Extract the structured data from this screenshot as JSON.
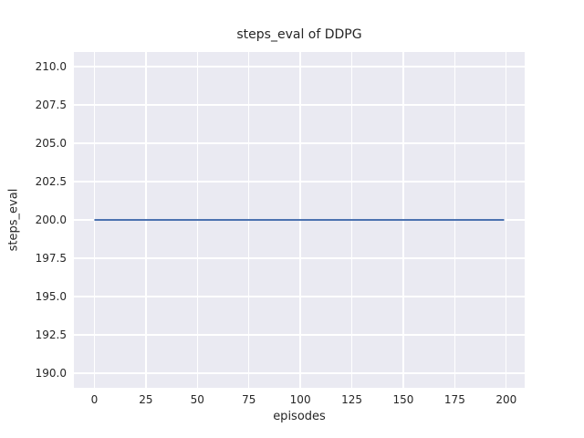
{
  "chart_data": {
    "type": "line",
    "title": "steps_eval of DDPG",
    "xlabel": "episodes",
    "ylabel": "steps_eval",
    "xlim": [
      -9.95,
      208.95
    ],
    "ylim": [
      189.05,
      210.95
    ],
    "xticks": {
      "values": [
        0,
        25,
        50,
        75,
        100,
        125,
        150,
        175,
        200
      ],
      "labels": [
        "0",
        "25",
        "50",
        "75",
        "100",
        "125",
        "150",
        "175",
        "200"
      ]
    },
    "yticks": {
      "values": [
        190,
        192.5,
        195,
        197.5,
        200,
        202.5,
        205,
        207.5,
        210
      ],
      "labels": [
        "190.0",
        "192.5",
        "195.0",
        "197.5",
        "200.0",
        "202.5",
        "205.0",
        "207.5",
        "210.0"
      ]
    },
    "grid": true,
    "legend_position": "none",
    "plot_background_color": "#eaeaf2",
    "gridline_color": "#ffffff",
    "text_color": "#262626",
    "series": [
      {
        "name": "DDPG",
        "color": "#4c72b0",
        "line_width": 2,
        "points": [
          [
            0,
            200
          ],
          [
            199,
            200
          ]
        ]
      }
    ]
  }
}
